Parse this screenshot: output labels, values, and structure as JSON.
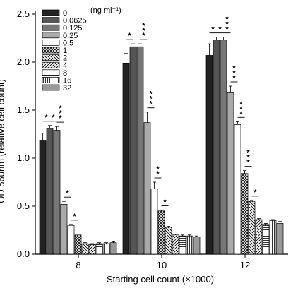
{
  "chart_data": {
    "type": "bar",
    "title": "",
    "xlabel": "Starting cell count (×1000)",
    "ylabel": "OD 560nm (relative cell count)",
    "ylim": [
      0,
      2.5
    ],
    "yticks": [
      "0.0",
      "0.5",
      "1.0",
      "1.5",
      "2.0",
      "2.5"
    ],
    "categories": [
      "8",
      "10",
      "12"
    ],
    "legend_unit": "(ng ml⁻¹)",
    "legend_position": "top-left",
    "grid": false,
    "series": [
      {
        "name": "0",
        "values": [
          1.18,
          1.99,
          2.07
        ],
        "errors": [
          0.08,
          0.1,
          0.12
        ],
        "fill": "#222222",
        "pattern": "solid"
      },
      {
        "name": "0.0625",
        "values": [
          1.31,
          2.16,
          2.23
        ],
        "errors": [
          0.03,
          0.03,
          0.03
        ],
        "fill": "#555555",
        "pattern": "solid"
      },
      {
        "name": "0.125",
        "values": [
          1.29,
          2.16,
          2.23
        ],
        "errors": [
          0.04,
          0.03,
          0.03
        ],
        "fill": "#777777",
        "pattern": "solid"
      },
      {
        "name": "0.25",
        "values": [
          0.52,
          1.37,
          1.68
        ],
        "errors": [
          0.03,
          0.11,
          0.07
        ],
        "fill": "#aaaaaa",
        "pattern": "solid"
      },
      {
        "name": "0.5",
        "values": [
          0.3,
          0.68,
          1.35
        ],
        "errors": [
          0.01,
          0.07,
          0.03
        ],
        "fill": "#ffffff",
        "pattern": "solid"
      },
      {
        "name": "1",
        "values": [
          0.2,
          0.45,
          0.84
        ],
        "errors": [
          0.01,
          0.01,
          0.03
        ],
        "fill": "#ffffff",
        "pattern": "crosshatch"
      },
      {
        "name": "2",
        "values": [
          0.11,
          0.28,
          0.55
        ],
        "errors": [
          0.01,
          0.01,
          0.01
        ],
        "fill": "#ffffff",
        "pattern": "diag-left"
      },
      {
        "name": "4",
        "values": [
          0.1,
          0.2,
          0.36
        ],
        "errors": [
          0.01,
          0.01,
          0.01
        ],
        "fill": "#ffffff",
        "pattern": "diag-right"
      },
      {
        "name": "8",
        "values": [
          0.11,
          0.19,
          0.31
        ],
        "errors": [
          0.01,
          0.01,
          0.01
        ],
        "fill": "#ffffff",
        "pattern": "horizontal"
      },
      {
        "name": "16",
        "values": [
          0.11,
          0.19,
          0.35
        ],
        "errors": [
          0.01,
          0.01,
          0.01
        ],
        "fill": "#ffffff",
        "pattern": "vertical"
      },
      {
        "name": "32",
        "values": [
          0.12,
          0.18,
          0.32
        ],
        "errors": [
          0.01,
          0.01,
          0.02
        ],
        "fill": "#999999",
        "pattern": "solid"
      }
    ],
    "annotations": [
      {
        "group": 0,
        "from": 0,
        "to": 1,
        "label": "*"
      },
      {
        "group": 0,
        "from": 1,
        "to": 2,
        "label": "*"
      },
      {
        "group": 0,
        "from": 2,
        "to": 3,
        "label": "***"
      },
      {
        "group": 0,
        "from": 3,
        "to": 4,
        "label": "*"
      },
      {
        "group": 0,
        "from": 4,
        "to": 5,
        "label": "*"
      },
      {
        "group": 1,
        "from": 0,
        "to": 1,
        "label": "*"
      },
      {
        "group": 1,
        "from": 2,
        "to": 3,
        "label": "***"
      },
      {
        "group": 1,
        "from": 3,
        "to": 4,
        "label": "***"
      },
      {
        "group": 1,
        "from": 4,
        "to": 5,
        "label": "**"
      },
      {
        "group": 1,
        "from": 5,
        "to": 6,
        "label": "*"
      },
      {
        "group": 2,
        "from": 0,
        "to": 1,
        "label": "*"
      },
      {
        "group": 2,
        "from": 1,
        "to": 2,
        "label": "*"
      },
      {
        "group": 2,
        "from": 2,
        "to": 3,
        "label": "***"
      },
      {
        "group": 2,
        "from": 3,
        "to": 4,
        "label": "***"
      },
      {
        "group": 2,
        "from": 4,
        "to": 5,
        "label": "***"
      },
      {
        "group": 2,
        "from": 5,
        "to": 6,
        "label": "***"
      },
      {
        "group": 2,
        "from": 6,
        "to": 7,
        "label": "*"
      }
    ]
  }
}
